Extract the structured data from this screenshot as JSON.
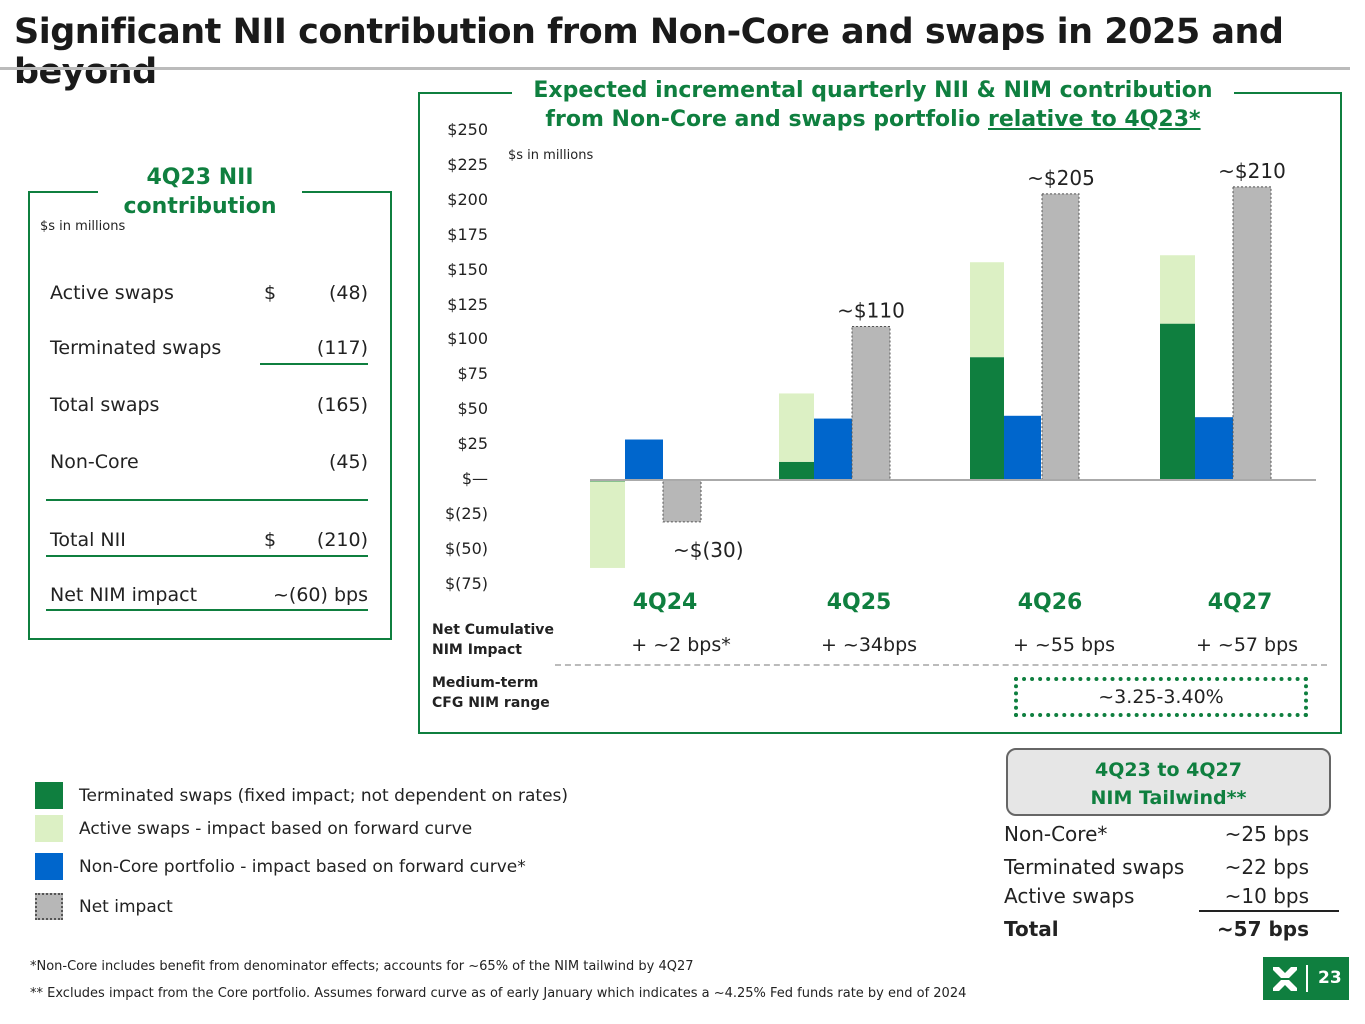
{
  "title": "Significant NII contribution from Non-Core and swaps in 2025 and beyond",
  "left_panel": {
    "title": "4Q23 NII contribution",
    "units": "$s in millions",
    "rows": [
      {
        "label": "Active swaps",
        "dollar": "$",
        "value": "(48)"
      },
      {
        "label": "Terminated swaps",
        "dollar": "",
        "value": "(117)"
      },
      {
        "label": "Total swaps",
        "dollar": "",
        "value": "(165)"
      },
      {
        "label": "Non-Core",
        "dollar": "",
        "value": "(45)"
      },
      {
        "label": "Total NII",
        "dollar": "$",
        "value": "(210)"
      },
      {
        "label": "Net NIM impact",
        "dollar": "",
        "value": "~(60) bps"
      }
    ]
  },
  "chart_title_line1": "Expected incremental quarterly NII & NIM contribution",
  "chart_title_line2a": "from Non-Core and swaps portfolio ",
  "chart_title_line2b": "relative to 4Q23*",
  "chart_data": {
    "type": "bar",
    "units_note": "$s in millions",
    "categories": [
      "4Q24",
      "4Q25",
      "4Q26",
      "4Q27"
    ],
    "ylim": [
      -75,
      250
    ],
    "yticks": [
      "$(75)",
      "$(50)",
      "$(25)",
      "$—",
      "$25",
      "$50",
      "$75",
      "$100",
      "$125",
      "$150",
      "$175",
      "$200",
      "$225",
      "$250"
    ],
    "ytick_values": [
      -75,
      -50,
      -25,
      0,
      25,
      50,
      75,
      100,
      125,
      150,
      175,
      200,
      225,
      250
    ],
    "series": [
      {
        "name": "Terminated swaps (fixed impact; not dependent on rates)",
        "color": "#0f7f3f",
        "stack": "swaps",
        "values": [
          -1,
          13,
          88,
          112
        ]
      },
      {
        "name": "Active swaps  - impact based on forward curve",
        "color": "#dcf0c4",
        "stack": "swaps",
        "values": [
          -63,
          49,
          68,
          49
        ]
      },
      {
        "name": "Non-Core portfolio - impact based on forward curve*",
        "color": "#0066cc",
        "values": [
          29,
          44,
          46,
          45
        ]
      },
      {
        "name": "Net impact",
        "color": "#b7b7b7",
        "values": [
          -30,
          110,
          205,
          210
        ]
      }
    ],
    "net_labels": [
      "~$(30)",
      "~$110",
      "~$205",
      "~$210"
    ],
    "legend_position": "bottom-left",
    "grid": false
  },
  "nim_row": {
    "label1": "Net Cumulative",
    "label2": "NIM Impact",
    "values": [
      "+ ~2 bps*",
      "+ ~34bps",
      "+ ~55 bps",
      "+ ~57 bps"
    ]
  },
  "medium_term": {
    "label1": "Medium-term",
    "label2": "CFG NIM range",
    "value": "~3.25-3.40%"
  },
  "tailwind": {
    "header1": "4Q23 to 4Q27",
    "header2": "NIM Tailwind**",
    "rows": [
      {
        "label": "Non-Core*",
        "value": "~25 bps"
      },
      {
        "label": "Terminated swaps",
        "value": "~22 bps"
      },
      {
        "label": "Active swaps",
        "value": "~10 bps"
      },
      {
        "label": "Total",
        "value": "~57 bps"
      }
    ]
  },
  "footnotes": [
    "*Non-Core includes benefit from denominator effects; accounts for ~65% of the NIM tailwind by 4Q27",
    "** Excludes impact from the Core portfolio. Assumes forward curve as of early January which indicates a ~4.25% Fed funds rate by end of 2024"
  ],
  "page_number": "23"
}
